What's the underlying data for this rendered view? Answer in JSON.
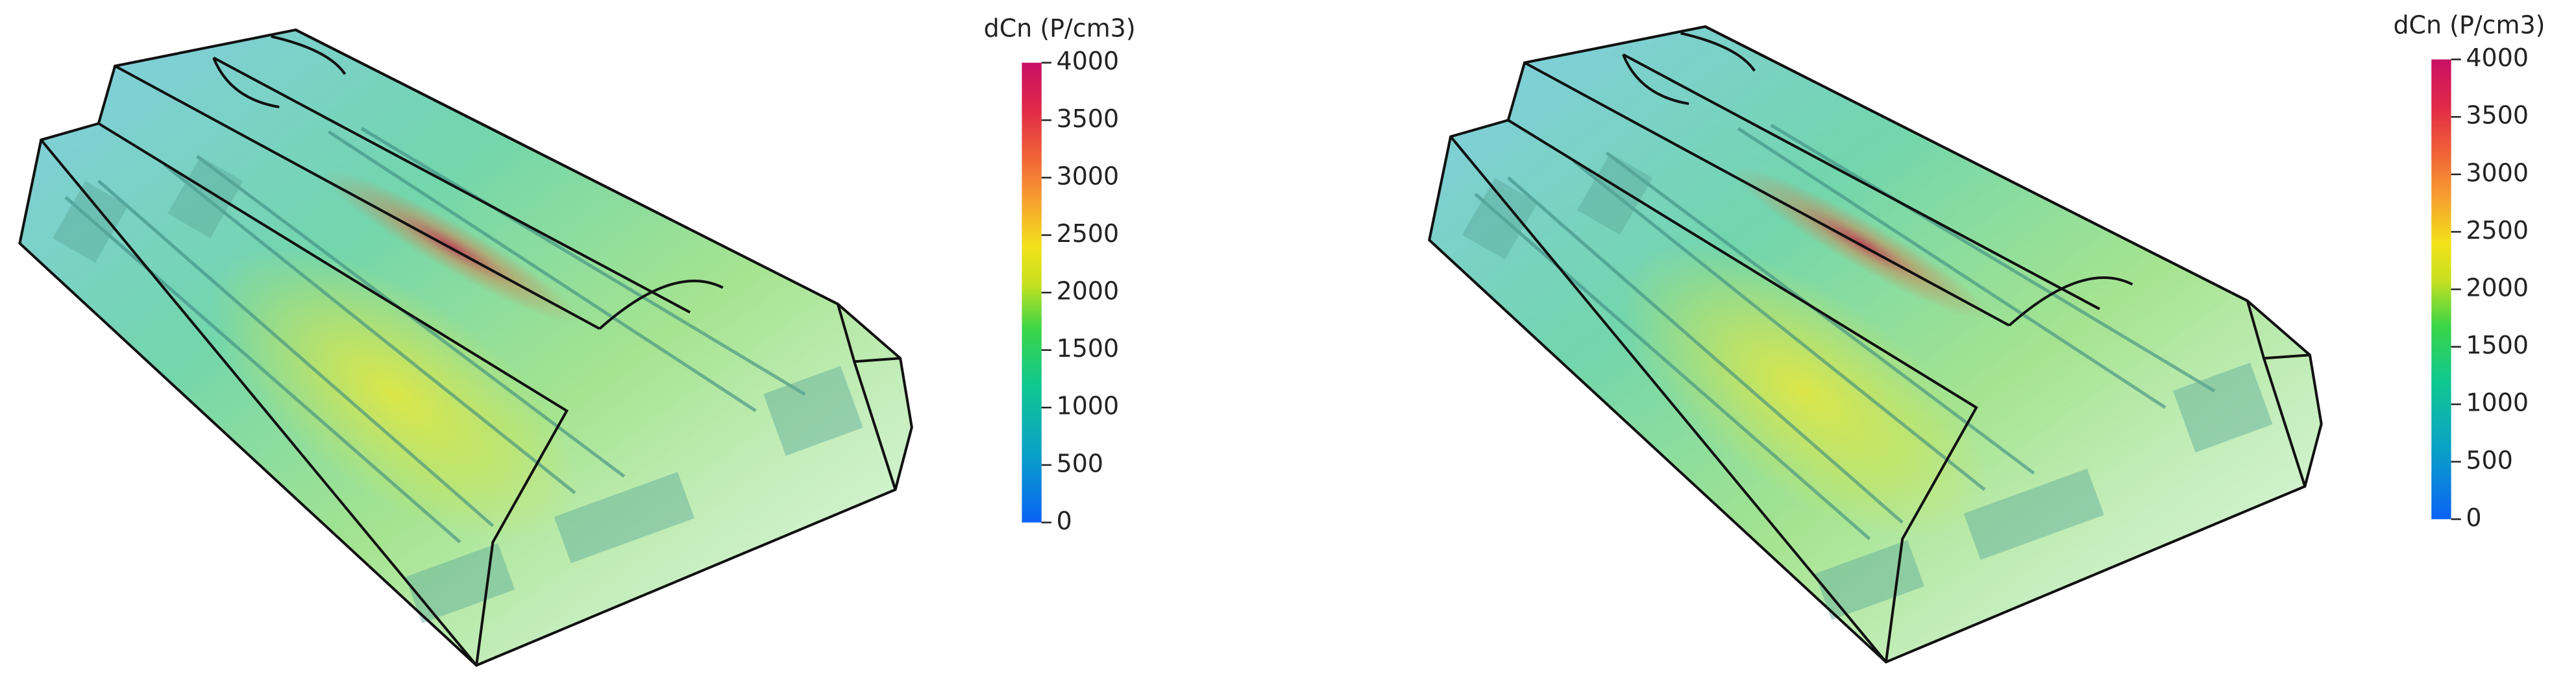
{
  "panels": [
    {
      "colorbar": {
        "title": "dCn (P/cm3)",
        "range": [
          0,
          4000
        ],
        "ticks": [
          0,
          500,
          1000,
          1500,
          2000,
          2500,
          3000,
          3500,
          4000
        ]
      }
    },
    {
      "colorbar": {
        "title": "dCn (P/cm3)",
        "range": [
          0,
          4000
        ],
        "ticks": [
          0,
          500,
          1000,
          1500,
          2000,
          2500,
          3000,
          3500,
          4000
        ]
      }
    }
  ]
}
